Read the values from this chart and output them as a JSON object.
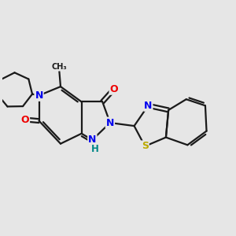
{
  "background_color": "#e6e6e6",
  "atom_colors": {
    "C": "#1a1a1a",
    "N": "#0000ee",
    "O": "#ee0000",
    "S": "#bbaa00",
    "H": "#008888"
  },
  "bond_lw": 1.6,
  "dbl_sep": 0.035,
  "figsize": [
    3.0,
    3.0
  ],
  "dpi": 100
}
